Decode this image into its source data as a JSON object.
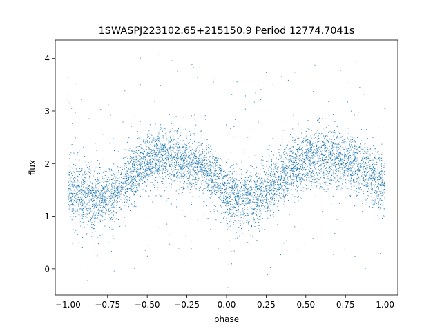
{
  "chart_data": {
    "type": "scatter",
    "title": "1SWASPJ223102.65+215150.9 Period 12774.7041s",
    "xlabel": "phase",
    "ylabel": "flux",
    "xlim": [
      -1.08,
      1.08
    ],
    "ylim": [
      -0.5,
      4.35
    ],
    "xticks": [
      -1.0,
      -0.75,
      -0.5,
      -0.25,
      0.0,
      0.25,
      0.5,
      0.75,
      1.0
    ],
    "xtick_labels": [
      "−1.00",
      "−0.75",
      "−0.50",
      "−0.25",
      "0.00",
      "0.25",
      "0.50",
      "0.75",
      "1.00"
    ],
    "yticks": [
      0,
      1,
      2,
      3,
      4
    ],
    "ytick_labels": [
      "0",
      "1",
      "2",
      "3",
      "4"
    ],
    "grid": false,
    "legend": "none",
    "point_color": "#1f77b4",
    "phase_range": [
      -1.0,
      1.0
    ],
    "series": [
      {
        "description_points": "phase-folded flux samples; binned mean profile shown below",
        "x": [
          -1.0,
          -0.9,
          -0.8,
          -0.7,
          -0.6,
          -0.5,
          -0.4,
          -0.3,
          -0.2,
          -0.1,
          0.0,
          0.1,
          0.2,
          0.3,
          0.4,
          0.5,
          0.6,
          0.7,
          0.8,
          0.9,
          1.0
        ],
        "y": [
          1.55,
          1.35,
          1.32,
          1.5,
          1.8,
          2.02,
          2.12,
          2.1,
          1.98,
          1.78,
          1.48,
          1.32,
          1.38,
          1.6,
          1.88,
          2.05,
          2.12,
          2.1,
          2.0,
          1.85,
          1.6
        ],
        "scatter_sigma": 0.28
      }
    ]
  }
}
